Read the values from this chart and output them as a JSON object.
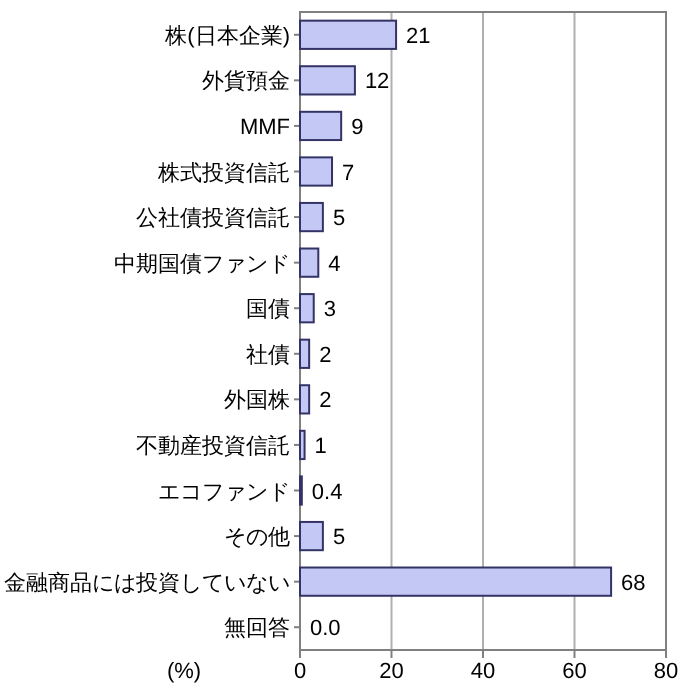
{
  "chart_data": {
    "type": "bar",
    "orientation": "horizontal",
    "categories": [
      "株(日本企業)",
      "外貨預金",
      "MMF",
      "株式投資信託",
      "公社債投資信託",
      "中期国債ファンド",
      "国債",
      "社債",
      "外国株",
      "不動産投資信託",
      "エコファンド",
      "その他",
      "金融商品には投資していない",
      "無回答"
    ],
    "values": [
      21,
      12,
      9,
      7,
      5,
      4,
      3,
      2,
      2,
      1,
      0.4,
      5,
      68,
      0.0
    ],
    "value_labels": [
      "21",
      "12",
      "9",
      "7",
      "5",
      "4",
      "3",
      "2",
      "2",
      "1",
      "0.4",
      "5",
      "68",
      "0.0"
    ],
    "color": "#c4c8f4",
    "xlim": [
      0,
      80
    ],
    "xticks": [
      0,
      20,
      40,
      60,
      80
    ],
    "xlabel": "(%)",
    "grid": "x"
  }
}
